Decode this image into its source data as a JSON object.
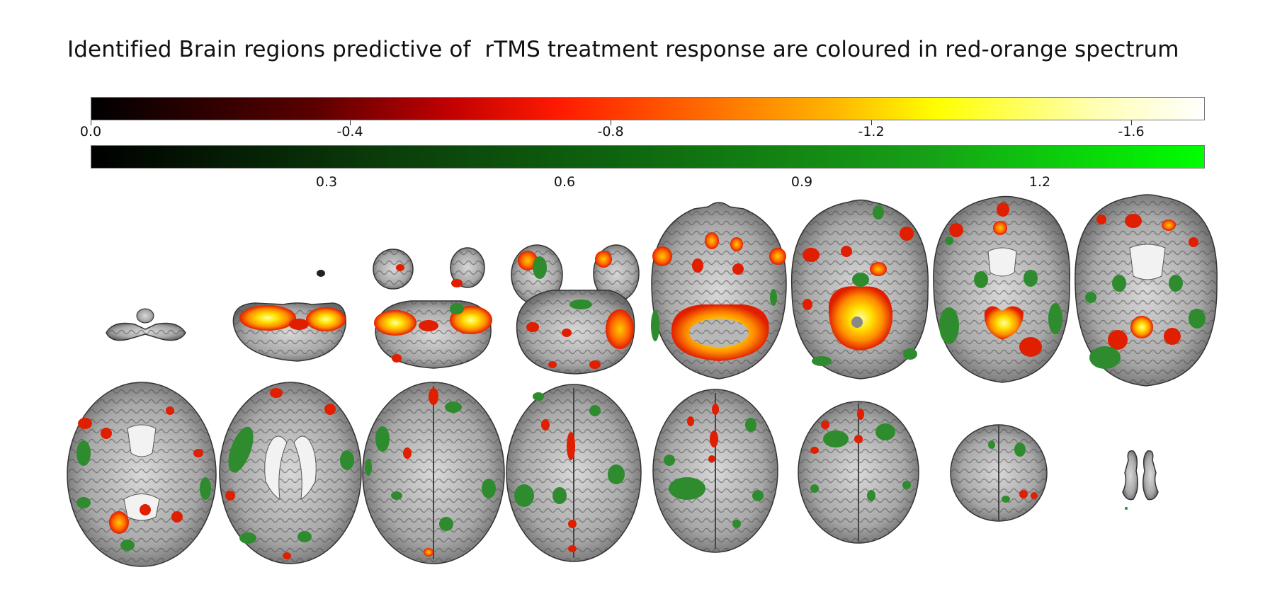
{
  "title": "Identified Brain regions predictive of  rTMS treatment response are coloured in red-orange spectrum",
  "colorbars": {
    "negative": {
      "colors": [
        "#000000",
        "#c00000",
        "#ff1a00",
        "#ffb000",
        "#ffff00",
        "#ffffff"
      ],
      "ticks": [
        "0.0",
        "-0.4",
        "-0.8",
        "-1.2",
        "-1.6"
      ]
    },
    "positive": {
      "colors": [
        "#000000",
        "#0f6a0f",
        "#00ff00"
      ],
      "ticks": [
        "0.3",
        "0.6",
        "0.9",
        "1.2"
      ]
    }
  },
  "image": {
    "subject": "axial brain MRI slices with overlaid red-orange and green clusters",
    "rows": 2,
    "slices_per_row": 8,
    "colors": {
      "brain_gray": "#9a9a9a",
      "red": "#e01e00",
      "orange": "#ff8c00",
      "yellow": "#ffe000",
      "green": "#2e8b2e"
    }
  }
}
